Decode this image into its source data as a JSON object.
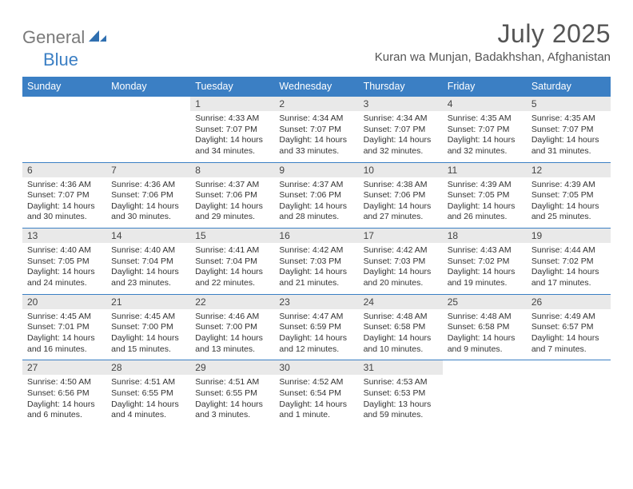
{
  "brand": {
    "text1": "General",
    "text2": "Blue"
  },
  "title": "July 2025",
  "location": "Kuran wa Munjan, Badakhshan, Afghanistan",
  "colors": {
    "header_bg": "#3b7fc4",
    "header_text": "#ffffff",
    "daynum_bg": "#e9e9e9",
    "border": "#3b7fc4",
    "page_bg": "#ffffff",
    "title_color": "#555555",
    "body_text": "#333333"
  },
  "daysOfWeek": [
    "Sunday",
    "Monday",
    "Tuesday",
    "Wednesday",
    "Thursday",
    "Friday",
    "Saturday"
  ],
  "weeks": [
    [
      null,
      null,
      {
        "n": "1",
        "sr": "Sunrise: 4:33 AM",
        "ss": "Sunset: 7:07 PM",
        "dl": "Daylight: 14 hours and 34 minutes."
      },
      {
        "n": "2",
        "sr": "Sunrise: 4:34 AM",
        "ss": "Sunset: 7:07 PM",
        "dl": "Daylight: 14 hours and 33 minutes."
      },
      {
        "n": "3",
        "sr": "Sunrise: 4:34 AM",
        "ss": "Sunset: 7:07 PM",
        "dl": "Daylight: 14 hours and 32 minutes."
      },
      {
        "n": "4",
        "sr": "Sunrise: 4:35 AM",
        "ss": "Sunset: 7:07 PM",
        "dl": "Daylight: 14 hours and 32 minutes."
      },
      {
        "n": "5",
        "sr": "Sunrise: 4:35 AM",
        "ss": "Sunset: 7:07 PM",
        "dl": "Daylight: 14 hours and 31 minutes."
      }
    ],
    [
      {
        "n": "6",
        "sr": "Sunrise: 4:36 AM",
        "ss": "Sunset: 7:07 PM",
        "dl": "Daylight: 14 hours and 30 minutes."
      },
      {
        "n": "7",
        "sr": "Sunrise: 4:36 AM",
        "ss": "Sunset: 7:06 PM",
        "dl": "Daylight: 14 hours and 30 minutes."
      },
      {
        "n": "8",
        "sr": "Sunrise: 4:37 AM",
        "ss": "Sunset: 7:06 PM",
        "dl": "Daylight: 14 hours and 29 minutes."
      },
      {
        "n": "9",
        "sr": "Sunrise: 4:37 AM",
        "ss": "Sunset: 7:06 PM",
        "dl": "Daylight: 14 hours and 28 minutes."
      },
      {
        "n": "10",
        "sr": "Sunrise: 4:38 AM",
        "ss": "Sunset: 7:06 PM",
        "dl": "Daylight: 14 hours and 27 minutes."
      },
      {
        "n": "11",
        "sr": "Sunrise: 4:39 AM",
        "ss": "Sunset: 7:05 PM",
        "dl": "Daylight: 14 hours and 26 minutes."
      },
      {
        "n": "12",
        "sr": "Sunrise: 4:39 AM",
        "ss": "Sunset: 7:05 PM",
        "dl": "Daylight: 14 hours and 25 minutes."
      }
    ],
    [
      {
        "n": "13",
        "sr": "Sunrise: 4:40 AM",
        "ss": "Sunset: 7:05 PM",
        "dl": "Daylight: 14 hours and 24 minutes."
      },
      {
        "n": "14",
        "sr": "Sunrise: 4:40 AM",
        "ss": "Sunset: 7:04 PM",
        "dl": "Daylight: 14 hours and 23 minutes."
      },
      {
        "n": "15",
        "sr": "Sunrise: 4:41 AM",
        "ss": "Sunset: 7:04 PM",
        "dl": "Daylight: 14 hours and 22 minutes."
      },
      {
        "n": "16",
        "sr": "Sunrise: 4:42 AM",
        "ss": "Sunset: 7:03 PM",
        "dl": "Daylight: 14 hours and 21 minutes."
      },
      {
        "n": "17",
        "sr": "Sunrise: 4:42 AM",
        "ss": "Sunset: 7:03 PM",
        "dl": "Daylight: 14 hours and 20 minutes."
      },
      {
        "n": "18",
        "sr": "Sunrise: 4:43 AM",
        "ss": "Sunset: 7:02 PM",
        "dl": "Daylight: 14 hours and 19 minutes."
      },
      {
        "n": "19",
        "sr": "Sunrise: 4:44 AM",
        "ss": "Sunset: 7:02 PM",
        "dl": "Daylight: 14 hours and 17 minutes."
      }
    ],
    [
      {
        "n": "20",
        "sr": "Sunrise: 4:45 AM",
        "ss": "Sunset: 7:01 PM",
        "dl": "Daylight: 14 hours and 16 minutes."
      },
      {
        "n": "21",
        "sr": "Sunrise: 4:45 AM",
        "ss": "Sunset: 7:00 PM",
        "dl": "Daylight: 14 hours and 15 minutes."
      },
      {
        "n": "22",
        "sr": "Sunrise: 4:46 AM",
        "ss": "Sunset: 7:00 PM",
        "dl": "Daylight: 14 hours and 13 minutes."
      },
      {
        "n": "23",
        "sr": "Sunrise: 4:47 AM",
        "ss": "Sunset: 6:59 PM",
        "dl": "Daylight: 14 hours and 12 minutes."
      },
      {
        "n": "24",
        "sr": "Sunrise: 4:48 AM",
        "ss": "Sunset: 6:58 PM",
        "dl": "Daylight: 14 hours and 10 minutes."
      },
      {
        "n": "25",
        "sr": "Sunrise: 4:48 AM",
        "ss": "Sunset: 6:58 PM",
        "dl": "Daylight: 14 hours and 9 minutes."
      },
      {
        "n": "26",
        "sr": "Sunrise: 4:49 AM",
        "ss": "Sunset: 6:57 PM",
        "dl": "Daylight: 14 hours and 7 minutes."
      }
    ],
    [
      {
        "n": "27",
        "sr": "Sunrise: 4:50 AM",
        "ss": "Sunset: 6:56 PM",
        "dl": "Daylight: 14 hours and 6 minutes."
      },
      {
        "n": "28",
        "sr": "Sunrise: 4:51 AM",
        "ss": "Sunset: 6:55 PM",
        "dl": "Daylight: 14 hours and 4 minutes."
      },
      {
        "n": "29",
        "sr": "Sunrise: 4:51 AM",
        "ss": "Sunset: 6:55 PM",
        "dl": "Daylight: 14 hours and 3 minutes."
      },
      {
        "n": "30",
        "sr": "Sunrise: 4:52 AM",
        "ss": "Sunset: 6:54 PM",
        "dl": "Daylight: 14 hours and 1 minute."
      },
      {
        "n": "31",
        "sr": "Sunrise: 4:53 AM",
        "ss": "Sunset: 6:53 PM",
        "dl": "Daylight: 13 hours and 59 minutes."
      },
      null,
      null
    ]
  ]
}
